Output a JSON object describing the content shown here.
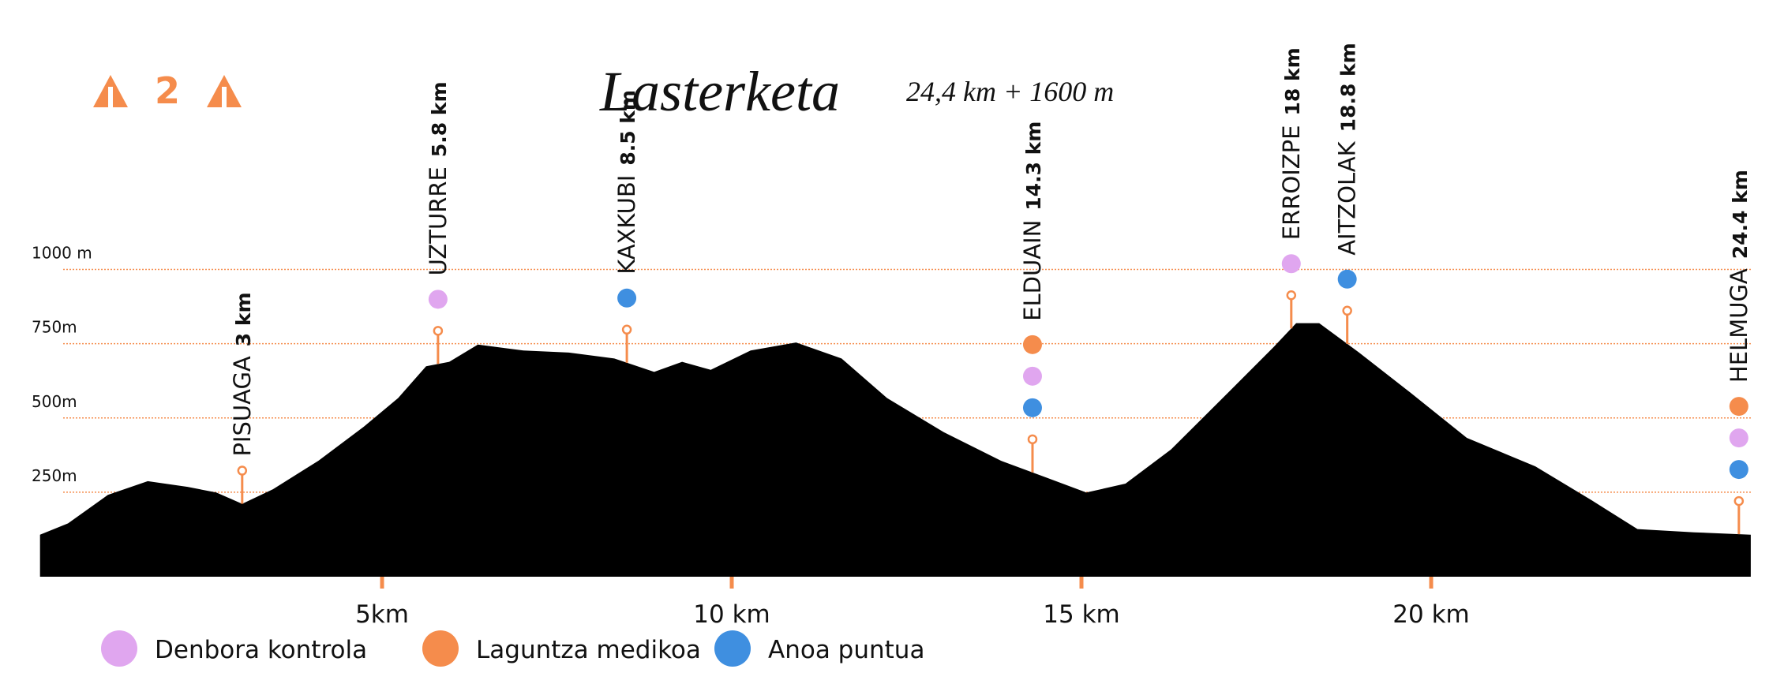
{
  "chart_data": {
    "type": "area",
    "title": "Lasterketa",
    "subtitle": "24,4 km + 1600 m",
    "badge": "2",
    "color": "#000000",
    "accent": "#f58c4c",
    "x": [
      0.11,
      0.51,
      1.08,
      1.65,
      2.22,
      2.63,
      3.0,
      3.44,
      4.09,
      4.74,
      5.23,
      5.63,
      5.96,
      6.37,
      7.02,
      7.67,
      8.32,
      8.89,
      9.29,
      9.7,
      10.27,
      10.92,
      11.57,
      12.22,
      13.03,
      13.85,
      14.5,
      15.07,
      15.63,
      16.28,
      17.1,
      17.75,
      18.07,
      18.4,
      18.97,
      19.7,
      20.51,
      21.49,
      22.3,
      22.95,
      23.76,
      24.57
    ],
    "values": [
      107,
      145,
      241,
      287,
      268,
      249,
      211,
      260,
      356,
      471,
      567,
      674,
      689,
      747,
      727,
      720,
      700,
      655,
      689,
      662,
      727,
      754,
      700,
      567,
      452,
      356,
      299,
      249,
      279,
      394,
      586,
      739,
      819,
      819,
      720,
      586,
      433,
      337,
      222,
      126,
      115,
      107
    ],
    "xlim": [
      0,
      25
    ],
    "ylim": [
      0,
      1000
    ],
    "xticks": [
      {
        "value": 5,
        "label": "5km"
      },
      {
        "value": 10,
        "label": "10 km"
      },
      {
        "value": 15,
        "label": "15 km"
      },
      {
        "value": 20,
        "label": "20 km"
      }
    ],
    "yticks": [
      {
        "value": 250,
        "label": "250m"
      },
      {
        "value": 500,
        "label": "500m"
      },
      {
        "value": 750,
        "label": "750m"
      },
      {
        "value": 1000,
        "label": "1000 m"
      }
    ],
    "grid": true,
    "legend": [
      {
        "name": "Denbora kontrola",
        "color": "#e0a6ef"
      },
      {
        "name": "Laguntza medikoa",
        "color": "#f58c4c"
      },
      {
        "name": "Anoa puntua",
        "color": "#3f8fe0"
      }
    ],
    "checkpoints": [
      {
        "name": "PISUAGA",
        "km": 3,
        "km_label": "3 km",
        "services": []
      },
      {
        "name": "UZTURRE",
        "km": 5.8,
        "km_label": "5.8 km",
        "services": [
          0
        ]
      },
      {
        "name": "KAXKUBI",
        "km": 8.5,
        "km_label": "8.5 km",
        "services": [
          2
        ]
      },
      {
        "name": "ELDUAIN",
        "km": 14.3,
        "km_label": "14.3 km",
        "services": [
          1,
          0,
          2
        ]
      },
      {
        "name": "ERROIZPE",
        "km": 18,
        "km_label": "18 km",
        "services": [
          0
        ]
      },
      {
        "name": "AITZOLAK",
        "km": 18.8,
        "km_label": "18.8 km",
        "services": [
          2
        ]
      },
      {
        "name": "HELMUGA",
        "km": 24.4,
        "km_label": "24.4 km",
        "services": [
          1,
          0,
          2
        ]
      }
    ]
  }
}
